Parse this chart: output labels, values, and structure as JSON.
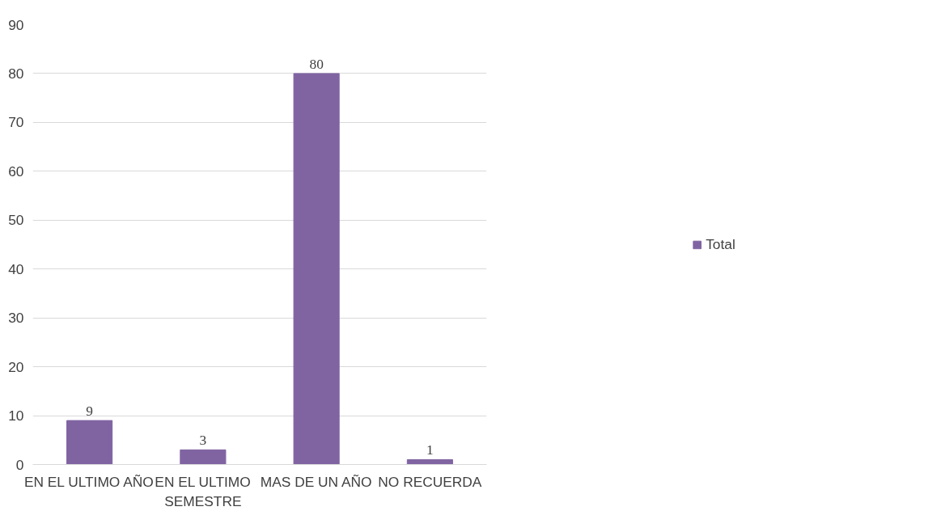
{
  "chart_data": {
    "type": "bar",
    "categories": [
      "EN EL ULTIMO AÑO",
      "EN EL ULTIMO SEMESTRE",
      "MAS DE UN AÑO",
      "NO RECUERDA"
    ],
    "series": [
      {
        "name": "Total",
        "color": "#8064a2",
        "values": [
          9,
          3,
          80,
          1
        ]
      }
    ],
    "ylim": [
      0,
      90
    ],
    "yticks": [
      0,
      10,
      20,
      30,
      40,
      50,
      60,
      70,
      80,
      90
    ],
    "grid": "y",
    "legend": "right",
    "data_labels": true
  }
}
